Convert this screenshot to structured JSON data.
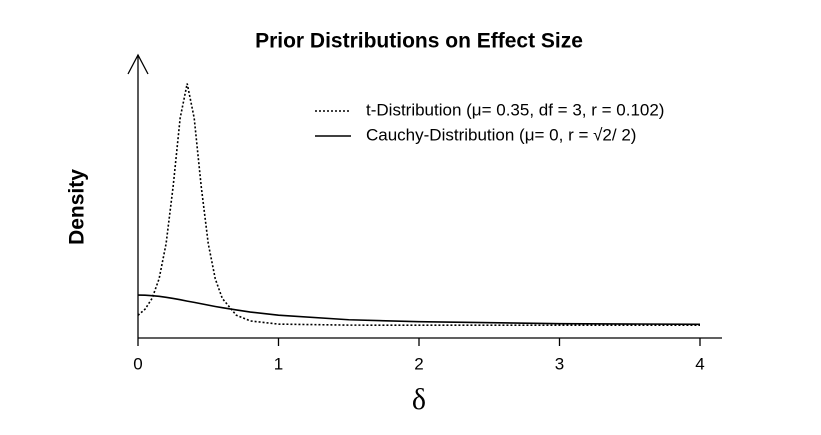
{
  "chart_data": {
    "type": "line",
    "title": "Prior Distributions on Effect Size",
    "x_label": "δ",
    "y_label": "Density",
    "x": [
      0,
      0.05,
      0.1,
      0.15,
      0.2,
      0.25,
      0.3,
      0.35,
      0.4,
      0.45,
      0.5,
      0.55,
      0.6,
      0.7,
      0.8,
      1,
      1.5,
      2,
      3,
      4
    ],
    "series": [
      {
        "name": "t-Distribution (μ= 0.35, df = 3, r = 0.102)",
        "color": "#000000",
        "dash": "dotted",
        "values": [
          0.149,
          0.239,
          0.4,
          0.692,
          1.217,
          2.068,
          3.089,
          3.604,
          3.089,
          2.068,
          1.217,
          0.692,
          0.4,
          0.149,
          0.064,
          0.017,
          0.002,
          0.001,
          0.0002,
          0.0001
        ]
      },
      {
        "name": "Cauchy-Distribution (μ= 0, r = √2/ 2)",
        "color": "#000000",
        "dash": "solid",
        "values": [
          0.45,
          0.448,
          0.441,
          0.431,
          0.417,
          0.4,
          0.381,
          0.36,
          0.341,
          0.321,
          0.3,
          0.28,
          0.262,
          0.228,
          0.197,
          0.15,
          0.082,
          0.053,
          0.024,
          0.014
        ]
      }
    ],
    "xlim": [
      0,
      4
    ],
    "xticks": [
      0,
      1,
      2,
      3,
      4
    ],
    "ylim": [
      -0.19,
      4.03
    ],
    "legend": "top-right"
  }
}
